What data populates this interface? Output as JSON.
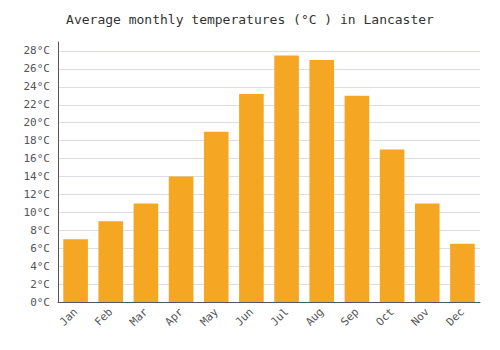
{
  "chart_data": {
    "type": "bar",
    "title": "Average monthly temperatures (°C ) in Lancaster",
    "categories": [
      "Jan",
      "Feb",
      "Mar",
      "Apr",
      "May",
      "Jun",
      "Jul",
      "Aug",
      "Sep",
      "Oct",
      "Nov",
      "Dec"
    ],
    "values": [
      7.0,
      9.0,
      11.0,
      14.0,
      19.0,
      23.2,
      27.5,
      27.0,
      23.0,
      17.0,
      11.0,
      6.5
    ],
    "color": "#F5A623",
    "ylim": [
      0,
      29
    ],
    "yticks": [
      {
        "value": 0,
        "label": "0°C"
      },
      {
        "value": 2,
        "label": "2°C"
      },
      {
        "value": 4,
        "label": "4°C"
      },
      {
        "value": 6,
        "label": "6°C"
      },
      {
        "value": 8,
        "label": "8°C"
      },
      {
        "value": 10,
        "label": "10°C"
      },
      {
        "value": 12,
        "label": "12°C"
      },
      {
        "value": 14,
        "label": "14°C"
      },
      {
        "value": 16,
        "label": "16°C"
      },
      {
        "value": 18,
        "label": "18°C"
      },
      {
        "value": 20,
        "label": "20°C"
      },
      {
        "value": 22,
        "label": "22°C"
      },
      {
        "value": 24,
        "label": "24°C"
      },
      {
        "value": 26,
        "label": "26°C"
      },
      {
        "value": 28,
        "label": "28°C"
      }
    ],
    "grid": true
  }
}
